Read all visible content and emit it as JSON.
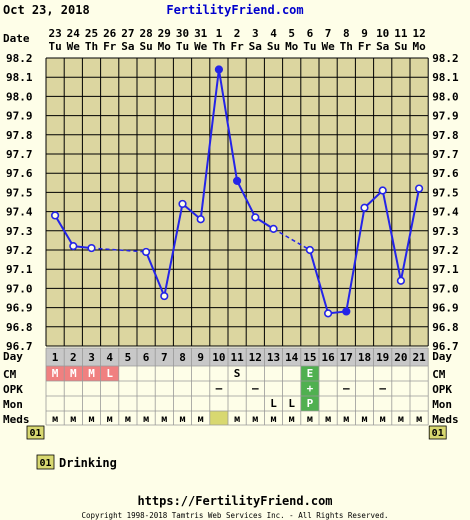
{
  "header": {
    "date": "Oct 23, 2018",
    "brand": "FertilityFriend.com"
  },
  "labels": {
    "date": "Date",
    "day": "Day",
    "cm": "CM",
    "opk": "OPK",
    "mon": "Mon",
    "meds": "Meds"
  },
  "footer": {
    "url": "https://FertilityFriend.com",
    "copyright": "Copyright 1998-2018 Tamtris Web Services Inc. - All Rights Reserved."
  },
  "legend": {
    "code": "01",
    "label": "Drinking"
  },
  "colors": {
    "line": "#2424e8",
    "grid": "#000000",
    "cell": "#dcd6a0",
    "day_row": "#c8c8c8",
    "menses": "#f08080",
    "green": "#50b050",
    "meds_mark": "#d8d870"
  },
  "chart_data": {
    "type": "line",
    "title": "",
    "xlabel": "Day",
    "ylabel": "",
    "ylim": [
      96.7,
      98.2
    ],
    "yticks": [
      "98.2",
      "98.1",
      "98.0",
      "97.9",
      "97.8",
      "97.7",
      "97.6",
      "97.5",
      "97.4",
      "97.3",
      "97.2",
      "97.1",
      "97.0",
      "96.9",
      "96.8",
      "96.7"
    ],
    "dates": [
      "23",
      "24",
      "25",
      "26",
      "27",
      "28",
      "29",
      "30",
      "31",
      "1",
      "2",
      "3",
      "4",
      "5",
      "6",
      "7",
      "8",
      "9",
      "10",
      "11",
      "12"
    ],
    "weekdays": [
      "Tu",
      "We",
      "Th",
      "Fr",
      "Sa",
      "Su",
      "Mo",
      "Tu",
      "We",
      "Th",
      "Fr",
      "Sa",
      "Su",
      "Mo",
      "Tu",
      "We",
      "Th",
      "Fr",
      "Sa",
      "Su",
      "Mo"
    ],
    "days": [
      "1",
      "2",
      "3",
      "4",
      "5",
      "6",
      "7",
      "8",
      "9",
      "10",
      "11",
      "12",
      "13",
      "14",
      "15",
      "16",
      "17",
      "18",
      "19",
      "20",
      "21"
    ],
    "temps": [
      97.38,
      97.22,
      97.21,
      null,
      null,
      97.19,
      96.96,
      97.44,
      97.36,
      98.14,
      97.56,
      97.37,
      97.31,
      null,
      97.2,
      96.87,
      96.88,
      97.42,
      97.51,
      97.04,
      97.52
    ],
    "filled_points": [
      10,
      11,
      17
    ],
    "dashed_gaps": [
      [
        3,
        6
      ],
      [
        13,
        15
      ]
    ],
    "cm": [
      "M",
      "M",
      "M",
      "L",
      "",
      "",
      "",
      "",
      "",
      "",
      "S",
      "",
      "",
      "",
      "E",
      "",
      "",
      "",
      "",
      "",
      ""
    ],
    "opk": [
      "",
      "",
      "",
      "",
      "",
      "",
      "",
      "",
      "",
      "–",
      "",
      "–",
      "",
      "",
      "+",
      "",
      "–",
      "",
      "–",
      "",
      ""
    ],
    "mon": [
      "",
      "",
      "",
      "",
      "",
      "",
      "",
      "",
      "",
      "",
      "",
      "",
      "L",
      "L",
      "P",
      "",
      "",
      "",
      "",
      "",
      ""
    ],
    "meds": [
      "м",
      "м",
      "м",
      "м",
      "м",
      "м",
      "м",
      "м",
      "м",
      "",
      "м",
      "м",
      "м",
      "м",
      "м",
      "м",
      "м",
      "м",
      "м",
      "м",
      "м"
    ],
    "meds_highlight": [
      10
    ],
    "meds_code": "01"
  }
}
